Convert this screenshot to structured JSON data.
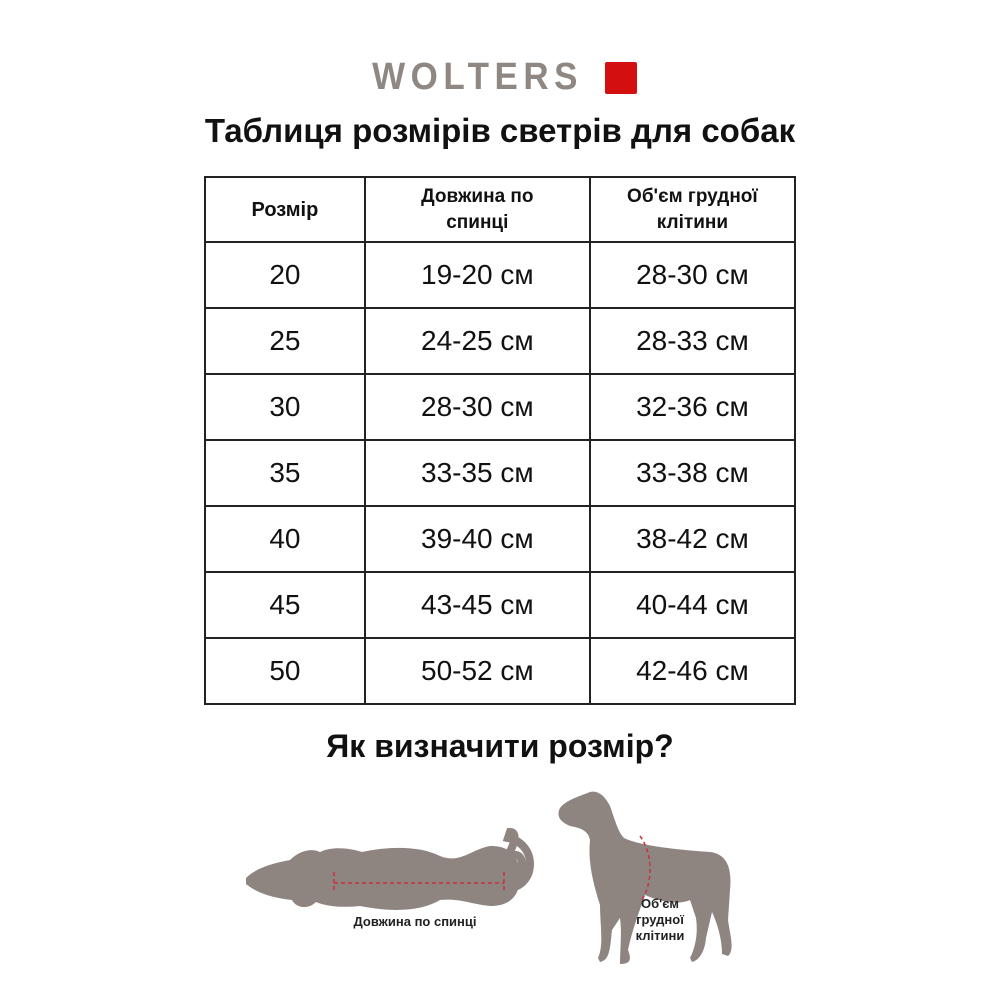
{
  "brand": {
    "name": "WOLTERS",
    "accent_color": "#d40f0f",
    "text_color": "#8f8782"
  },
  "title": "Таблиця розмірів светрів для собак",
  "table": {
    "headers": [
      "Розмір",
      "Довжина по спинці",
      "Об'єм грудної клітини"
    ],
    "rows": [
      [
        "20",
        "19-20 см",
        "28-30 см"
      ],
      [
        "25",
        "24-25 см",
        "28-33 см"
      ],
      [
        "30",
        "28-30 см",
        "32-36 см"
      ],
      [
        "35",
        "33-35 см",
        "33-38 см"
      ],
      [
        "40",
        "39-40 см",
        "38-42 см"
      ],
      [
        "45",
        "43-45 см",
        "40-44 см"
      ],
      [
        "50",
        "50-52 см",
        "42-46 см"
      ]
    ]
  },
  "subtitle": "Як визначити розмір?",
  "illustration": {
    "back_length_label": "Довжина по спинці",
    "chest_label_lines": [
      "Об'єм",
      "грудної",
      "клітини"
    ],
    "silhouette_color": "#8f8580",
    "measure_color": "#c8323c"
  }
}
